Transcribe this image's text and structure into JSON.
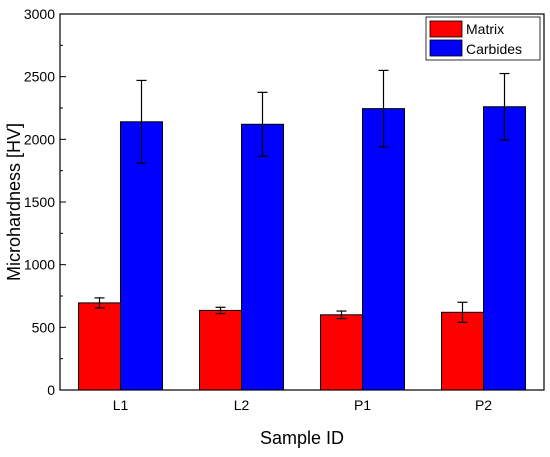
{
  "chart_data": {
    "type": "bar",
    "xlabel": "Sample ID",
    "ylabel": "Microhardness [HV]",
    "categories": [
      "L1",
      "L2",
      "P1",
      "P2"
    ],
    "ylim": [
      0,
      3000
    ],
    "yticks": [
      0,
      500,
      1000,
      1500,
      2000,
      2500,
      3000
    ],
    "grid": false,
    "legend_position": "top-right",
    "series": [
      {
        "name": "Matrix",
        "color": "#ff0000",
        "values": [
          695,
          635,
          600,
          620
        ],
        "errors": [
          40,
          25,
          30,
          80
        ]
      },
      {
        "name": "Carbides",
        "color": "#0000ff",
        "values": [
          2140,
          2120,
          2245,
          2260
        ],
        "errors": [
          330,
          255,
          305,
          265
        ]
      }
    ]
  }
}
